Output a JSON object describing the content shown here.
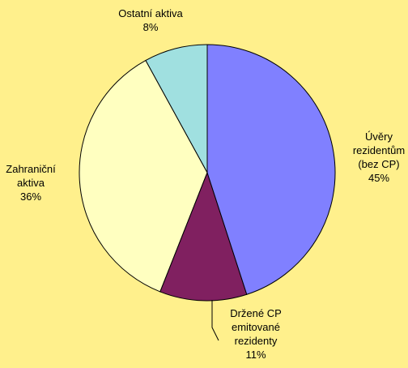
{
  "chart_data": {
    "type": "pie",
    "categories": [
      "Úvěry rezidentům (bez CP)",
      "Držené CP emitované rezidenty",
      "Zahraniční aktiva",
      "Ostatní aktiva"
    ],
    "values": [
      45,
      11,
      36,
      8
    ],
    "value_labels": [
      "45%",
      "11%",
      "36%",
      "8%"
    ],
    "colors": [
      "#8080ff",
      "#802060",
      "#ffffc0",
      "#a0e0e0"
    ]
  }
}
